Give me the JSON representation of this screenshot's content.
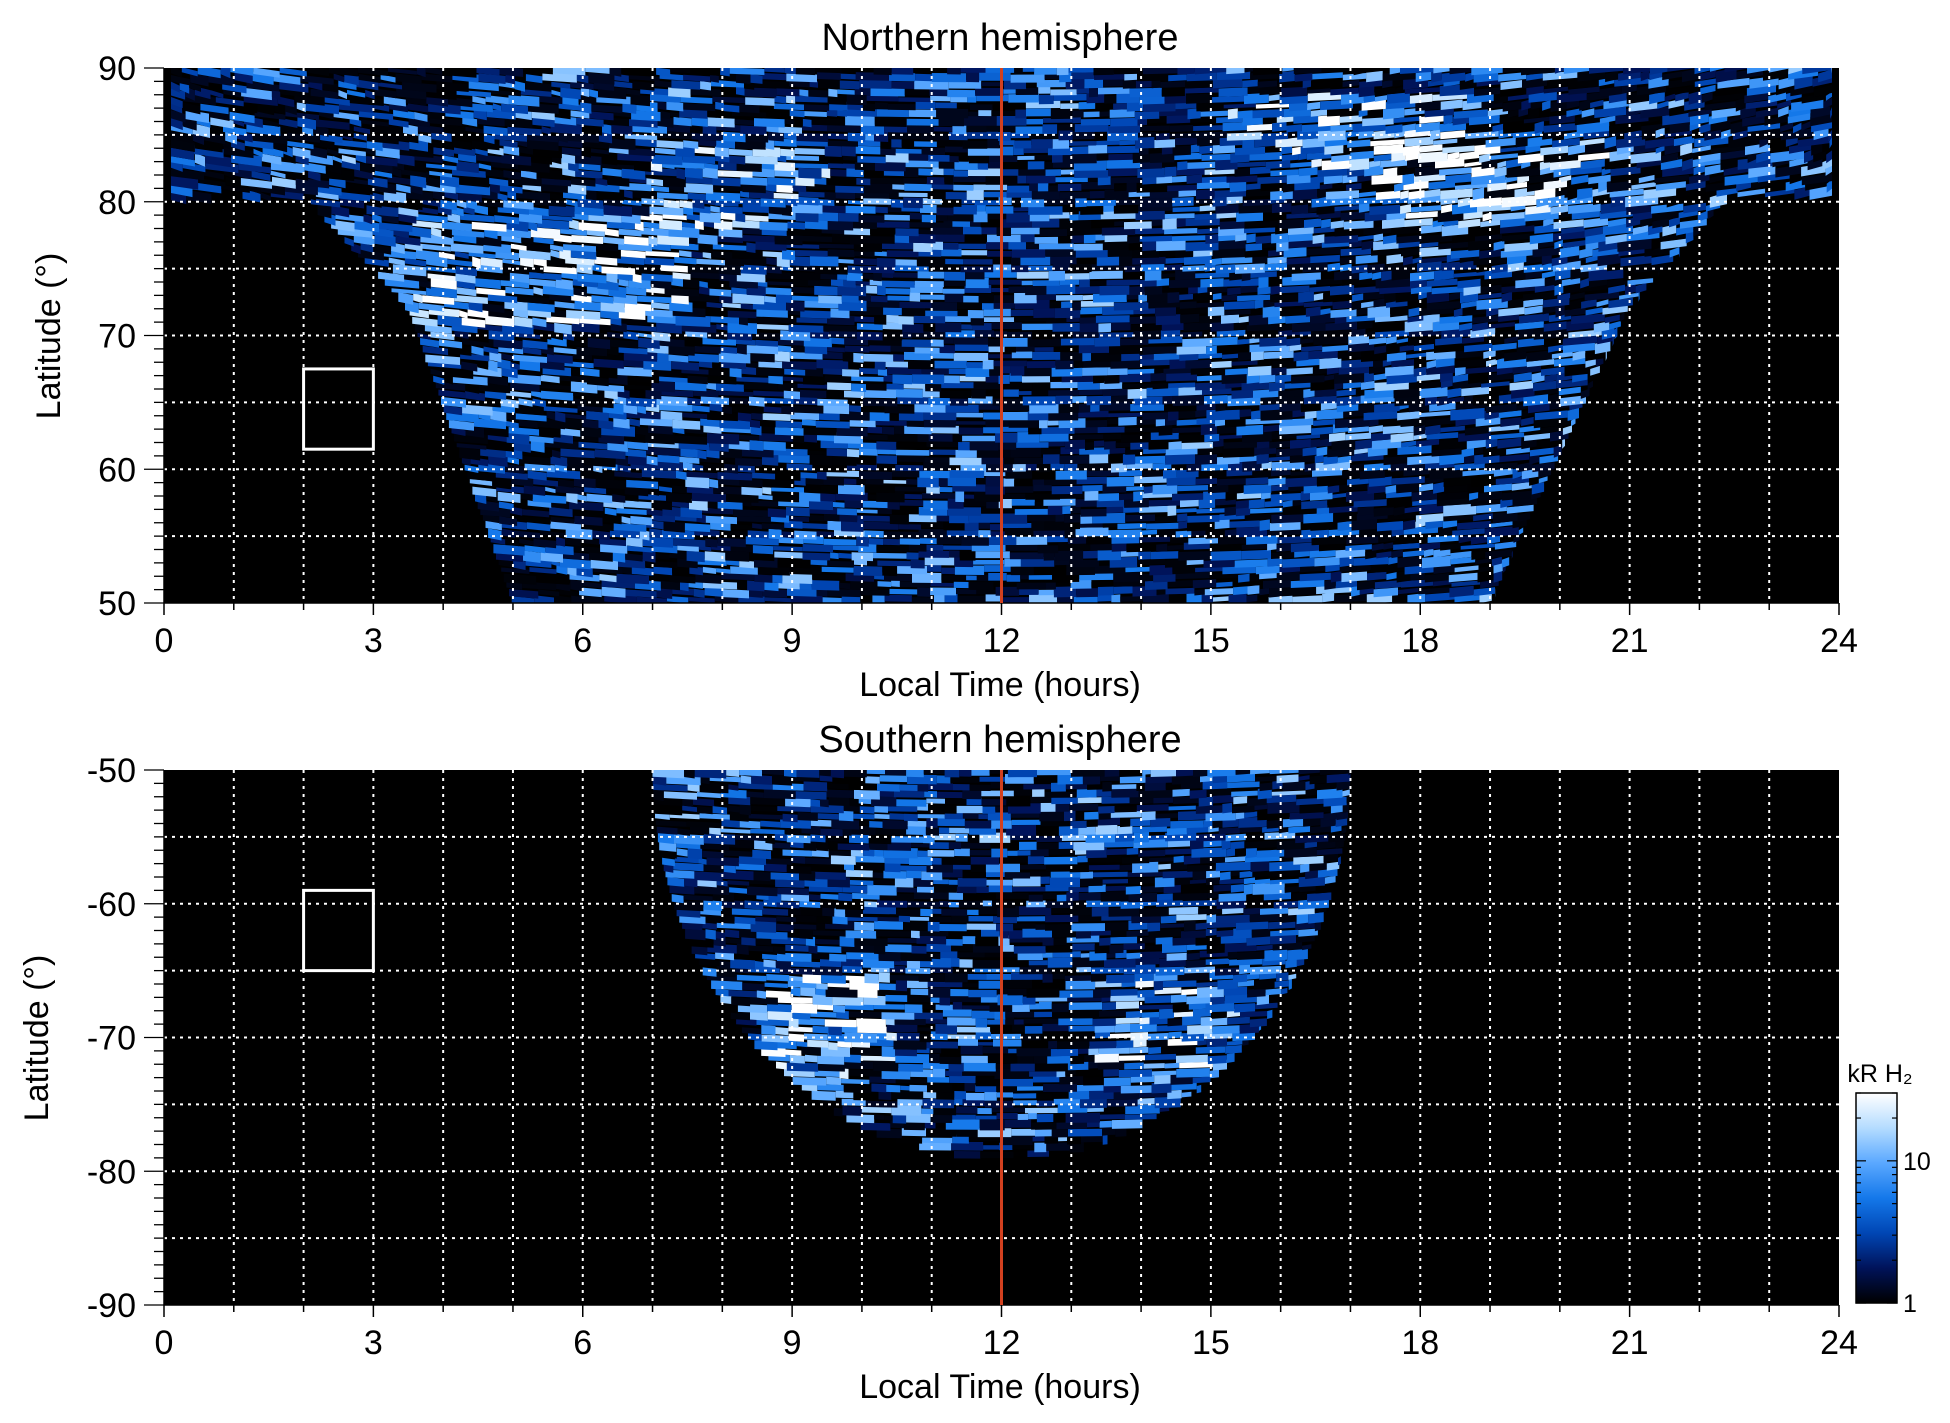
{
  "chart_data": [
    {
      "type": "heatmap",
      "title": "Northern hemisphere",
      "xlabel": "Local Time (hours)",
      "ylabel": "Latitude (°)",
      "xlim": [
        0,
        24
      ],
      "ylim": [
        50,
        90
      ],
      "x_ticks": [
        "0",
        "3",
        "6",
        "9",
        "12",
        "15",
        "18",
        "21",
        "24"
      ],
      "y_ticks": [
        "90",
        "80",
        "70",
        "60",
        "50"
      ],
      "grid": true,
      "reference_line": {
        "x": 12,
        "color": "#d2401f"
      },
      "box": {
        "x": [
          2,
          3
        ],
        "y": [
          61.5,
          67.5
        ]
      },
      "coverage": "half-disk open toward high latitudes: LT 5-19 at 50°, narrowing to LT 3.5-21 at 72°; full LT coverage above 80°",
      "bright_regions": [
        {
          "x": [
            3.5,
            7.5
          ],
          "y": [
            71,
            79
          ],
          "level": "high"
        },
        {
          "x": [
            17.5,
            20.5
          ],
          "y": [
            78,
            85
          ],
          "level": "high"
        },
        {
          "x": [
            15,
            19
          ],
          "y": [
            82,
            88
          ],
          "level": "medium"
        },
        {
          "x": [
            7,
            9.5
          ],
          "y": [
            78,
            84
          ],
          "level": "medium"
        }
      ]
    },
    {
      "type": "heatmap",
      "title": "Southern hemisphere",
      "xlabel": "Local Time (hours)",
      "ylabel": "Latitude (°)",
      "xlim": [
        0,
        24
      ],
      "ylim": [
        -90,
        -50
      ],
      "x_ticks": [
        "0",
        "3",
        "6",
        "9",
        "12",
        "15",
        "18",
        "21",
        "24"
      ],
      "y_ticks": [
        "-50",
        "-60",
        "-70",
        "-80",
        "-90"
      ],
      "grid": true,
      "reference_line": {
        "x": 12,
        "color": "#d2401f"
      },
      "box": {
        "x": [
          2,
          3
        ],
        "y": [
          -65,
          -59
        ]
      },
      "coverage": "half-disk: LT 7-17 at -50°, narrowing to a point at LT 12, -79°",
      "bright_regions": [
        {
          "x": [
            8.5,
            10.5
          ],
          "y": [
            -73,
            -65
          ],
          "level": "high"
        },
        {
          "x": [
            13.5,
            15.5
          ],
          "y": [
            -73,
            -65
          ],
          "level": "medium"
        }
      ],
      "colorbar": {
        "title": "kR H₂",
        "scale": "log",
        "range": [
          1,
          30
        ],
        "tick_labels": [
          "1",
          "10"
        ],
        "colors": [
          "#000000",
          "#00135a",
          "#0046b4",
          "#1478ea",
          "#5aa8ff",
          "#b4dcff",
          "#ffffff"
        ]
      }
    }
  ]
}
